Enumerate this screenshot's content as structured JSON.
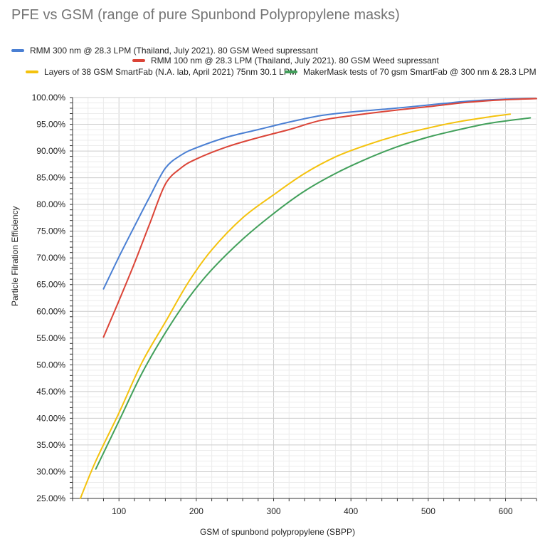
{
  "chart_data": {
    "type": "line",
    "title": "PFE vs GSM (range of pure Spunbond Polypropylene masks)",
    "xlabel": "GSM of spunbond polypropylene (SBPP)",
    "ylabel": "Particle Filration Efficiency",
    "xlim": [
      40,
      640
    ],
    "ylim": [
      25,
      100
    ],
    "x_ticks": [
      100,
      200,
      300,
      400,
      500,
      600
    ],
    "y_ticks": [
      25,
      30,
      35,
      40,
      45,
      50,
      55,
      60,
      65,
      70,
      75,
      80,
      85,
      90,
      95,
      100
    ],
    "y_tick_labels": [
      "25.00%",
      "30.00%",
      "35.00%",
      "40.00%",
      "45.00%",
      "50.00%",
      "55.00%",
      "60.00%",
      "65.00%",
      "70.00%",
      "75.00%",
      "80.00%",
      "85.00%",
      "90.00%",
      "95.00%",
      "100.00%"
    ],
    "grid": true,
    "legend_position": "top",
    "series": [
      {
        "name": "RMM 300 nm @ 28.3 LPM (Thailand, July 2021). 80 GSM Weed supressant",
        "color": "#4a7fd3",
        "x": [
          80,
          100,
          120,
          140,
          160,
          180,
          200,
          240,
          280,
          320,
          360,
          400,
          450,
          500,
          550,
          600,
          640
        ],
        "y": [
          64.2,
          70.2,
          75.9,
          81.5,
          86.8,
          89.2,
          90.6,
          92.6,
          94.0,
          95.4,
          96.6,
          97.3,
          97.9,
          98.6,
          99.3,
          99.7,
          99.8
        ]
      },
      {
        "name": "RMM 100 nm @ 28.3 LPM (Thailand, July 2021). 80 GSM Weed supressant",
        "color": "#db4437",
        "x": [
          80,
          100,
          120,
          140,
          160,
          180,
          200,
          240,
          280,
          320,
          360,
          400,
          450,
          500,
          550,
          600,
          640
        ],
        "y": [
          55.2,
          62.0,
          69.0,
          76.5,
          83.8,
          86.8,
          88.5,
          90.8,
          92.5,
          94.0,
          95.7,
          96.6,
          97.5,
          98.3,
          99.1,
          99.6,
          99.8
        ]
      },
      {
        "name": "Layers of 38 GSM SmartFab (N.A. lab, April 2021) 75nm 30.1 LPM",
        "color": "#f4c20d",
        "x": [
          50,
          70,
          100,
          130,
          160,
          190,
          220,
          260,
          300,
          340,
          380,
          420,
          460,
          500,
          540,
          580,
          606
        ],
        "y": [
          25.0,
          32.0,
          41.0,
          50.5,
          58.0,
          65.5,
          71.5,
          77.5,
          81.8,
          85.8,
          88.9,
          91.1,
          92.9,
          94.3,
          95.5,
          96.4,
          96.9
        ]
      },
      {
        "name": "MakerMask tests of 70 gsm SmartFab @ 300 nm & 28.3 LPM",
        "color": "#42a05b",
        "x": [
          70,
          100,
          130,
          160,
          190,
          220,
          260,
          300,
          340,
          380,
          420,
          460,
          500,
          540,
          580,
          632
        ],
        "y": [
          30.5,
          39.5,
          48.5,
          56.0,
          62.5,
          67.8,
          73.5,
          78.3,
          82.5,
          85.8,
          88.5,
          90.8,
          92.6,
          94.0,
          95.2,
          96.2
        ]
      }
    ]
  }
}
